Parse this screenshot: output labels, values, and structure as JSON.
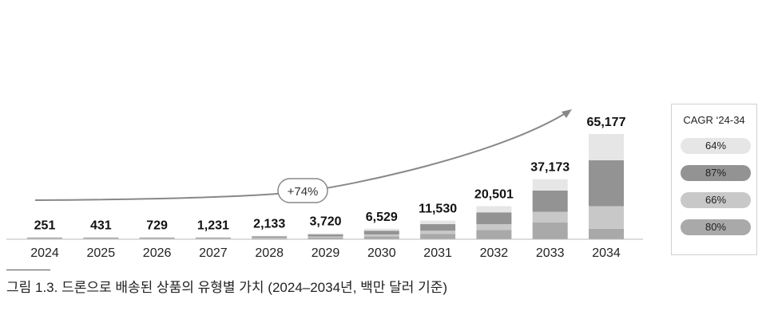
{
  "chart_data": {
    "type": "bar",
    "stacked": true,
    "categories": [
      "2024",
      "2025",
      "2026",
      "2027",
      "2028",
      "2029",
      "2030",
      "2031",
      "2032",
      "2033",
      "2034"
    ],
    "totals": [
      251,
      431,
      729,
      1231,
      2133,
      3720,
      6529,
      11530,
      20501,
      37173,
      65177
    ],
    "total_labels": [
      "251",
      "431",
      "729",
      "1,231",
      "2,133",
      "3,720",
      "6,529",
      "11,530",
      "20,501",
      "37,173",
      "65,177"
    ],
    "series": [
      {
        "values": [
          70,
          120,
          203,
          343,
          594,
          1036,
          1818,
          3211,
          5709,
          10352,
          6500
        ]
      },
      {
        "values": [
          45,
          77,
          130,
          220,
          381,
          664,
          1165,
          2058,
          3659,
          6635,
          14000
        ]
      },
      {
        "values": [
          89,
          153,
          259,
          437,
          757,
          1320,
          2317,
          4092,
          7275,
          13192,
          28377
        ]
      },
      {
        "values": [
          47,
          81,
          137,
          231,
          401,
          700,
          1229,
          2169,
          3858,
          6994,
          16300
        ]
      }
    ],
    "colors": [
      "#a9a9a9",
      "#c8c8c8",
      "#939393",
      "#e6e6e6"
    ],
    "growth_annotation": "+74%",
    "legend": {
      "title": "CAGR ‘24-34",
      "items": [
        {
          "label": "64%",
          "color": "#e6e6e6"
        },
        {
          "label": "87%",
          "color": "#939393"
        },
        {
          "label": "66%",
          "color": "#c8c8c8"
        },
        {
          "label": "80%",
          "color": "#a9a9a9"
        }
      ]
    },
    "caption": "그림 1.3. 드론으로 배송된 상품의 유형별 가치 (2024–2034년, 백만 달러 기준)"
  }
}
